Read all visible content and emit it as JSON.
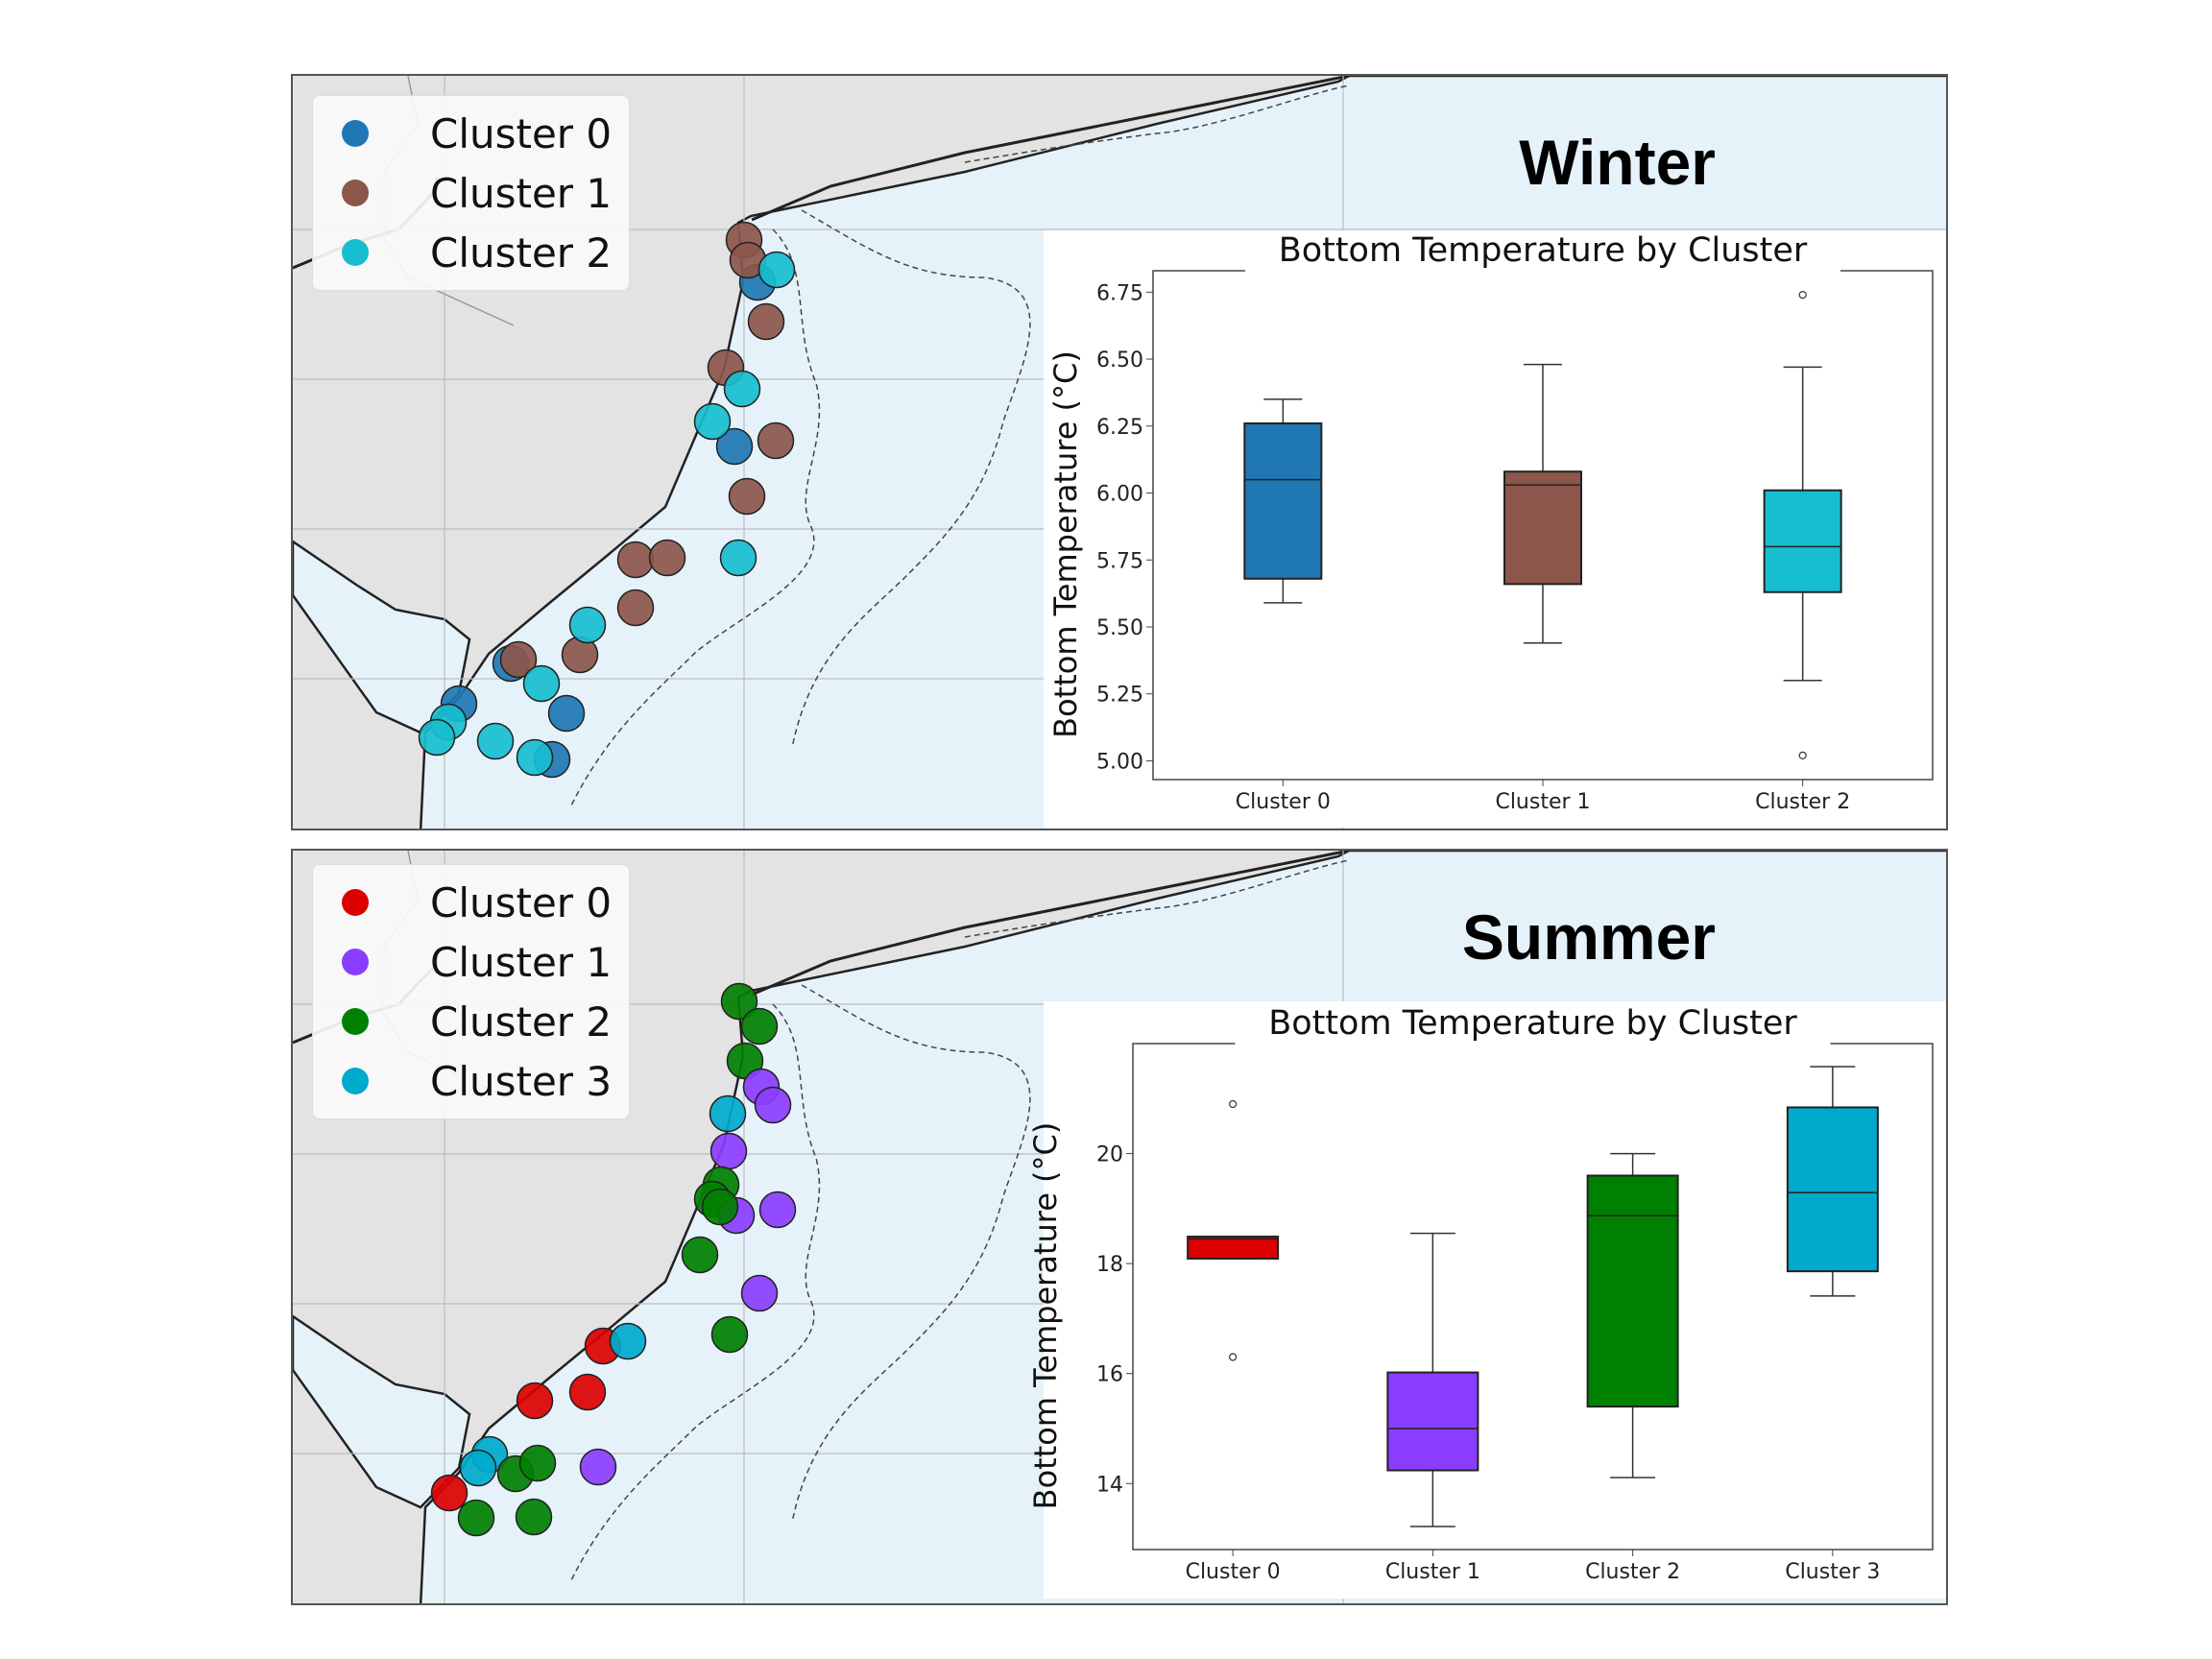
{
  "panels": [
    {
      "season": "Winter",
      "legend": [
        {
          "label": "Cluster 0",
          "color": "#1f77b4"
        },
        {
          "label": "Cluster 1",
          "color": "#8c564b"
        },
        {
          "label": "Cluster 2",
          "color": "#17becf"
        }
      ]
    },
    {
      "season": "Summer",
      "legend": [
        {
          "label": "Cluster 0",
          "color": "#dd0000"
        },
        {
          "label": "Cluster 1",
          "color": "#8b3dff"
        },
        {
          "label": "Cluster 2",
          "color": "#008000"
        },
        {
          "label": "Cluster 3",
          "color": "#00aacc"
        }
      ]
    }
  ],
  "map_colors": {
    "land": "#e3e3e3",
    "ocean": "#e6f2fa",
    "coast": "#222222",
    "grid": "#bdbdbd"
  },
  "chart_data": [
    {
      "type": "box",
      "title": "Bottom Temperature by Cluster",
      "xlabel": "",
      "ylabel": "Bottom Temperature (°C)",
      "ylim": [
        4.93,
        6.83
      ],
      "yticks": [
        "5.00",
        "5.25",
        "5.50",
        "5.75",
        "6.00",
        "6.25",
        "6.50",
        "6.75"
      ],
      "grid": false,
      "categories": [
        "Cluster 0",
        "Cluster 1",
        "Cluster 2"
      ],
      "colors": [
        "#1f77b4",
        "#8c564b",
        "#17becf"
      ],
      "boxes": [
        {
          "whislo": 5.59,
          "q1": 5.68,
          "med": 6.05,
          "q3": 6.26,
          "whishi": 6.35,
          "fliers": []
        },
        {
          "whislo": 5.44,
          "q1": 5.66,
          "med": 6.03,
          "q3": 6.08,
          "whishi": 6.48,
          "fliers": []
        },
        {
          "whislo": 5.3,
          "q1": 5.63,
          "med": 5.8,
          "q3": 6.01,
          "whishi": 6.47,
          "fliers": [
            6.74,
            5.02
          ]
        }
      ]
    },
    {
      "type": "box",
      "title": "Bottom Temperature by Cluster",
      "xlabel": "",
      "ylabel": "Bottom Temperature (°C)",
      "ylim": [
        12.8,
        22.0
      ],
      "yticks": [
        "14",
        "16",
        "18",
        "20"
      ],
      "grid": false,
      "categories": [
        "Cluster 0",
        "Cluster 1",
        "Cluster 2",
        "Cluster 3"
      ],
      "colors": [
        "#dd0000",
        "#8b3dff",
        "#008000",
        "#00aacc"
      ],
      "boxes": [
        {
          "whislo": 18.09,
          "q1": 18.09,
          "med": 18.45,
          "q3": 18.49,
          "whishi": 18.49,
          "fliers": [
            20.9,
            16.3
          ]
        },
        {
          "whislo": 13.22,
          "q1": 14.24,
          "med": 15.0,
          "q3": 16.02,
          "whishi": 18.55,
          "fliers": []
        },
        {
          "whislo": 14.11,
          "q1": 15.4,
          "med": 18.87,
          "q3": 19.6,
          "whishi": 20.0,
          "fliers": []
        },
        {
          "whislo": 17.41,
          "q1": 17.86,
          "med": 19.29,
          "q3": 20.84,
          "whishi": 21.58,
          "fliers": []
        }
      ]
    }
  ]
}
